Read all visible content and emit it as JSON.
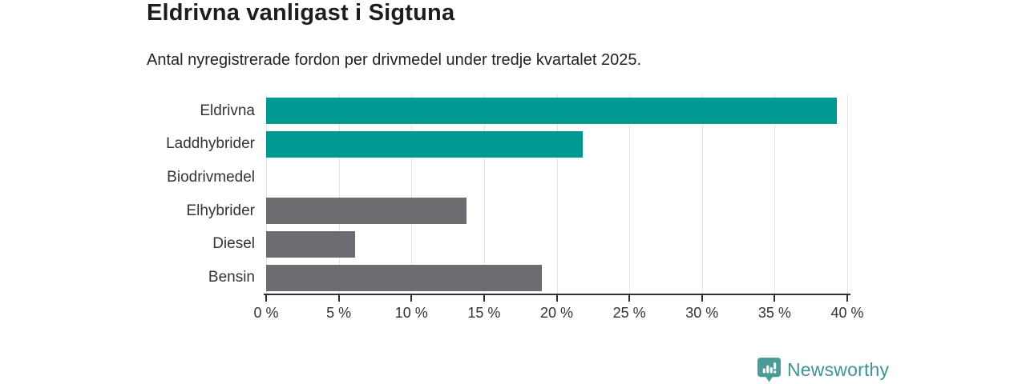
{
  "title": "Eldrivna vanligast i Sigtuna",
  "subtitle": "Antal nyregistrerade fordon per drivmedel under tredje kvartalet 2025.",
  "chart_data": {
    "type": "bar",
    "orientation": "horizontal",
    "title": "Eldrivna vanligast i Sigtuna",
    "subtitle": "Antal nyregistrerade fordon per drivmedel under tredje kvartalet 2025.",
    "categories": [
      "Eldrivna",
      "Laddhybrider",
      "Biodrivmedel",
      "Elhybrider",
      "Diesel",
      "Bensin"
    ],
    "values": [
      39.3,
      21.8,
      0,
      13.8,
      6.1,
      19.0
    ],
    "unit": "%",
    "xlim": [
      0,
      40
    ],
    "x_ticks": [
      {
        "value": 0,
        "label": "0 %"
      },
      {
        "value": 5,
        "label": "5 %"
      },
      {
        "value": 10,
        "label": "10 %"
      },
      {
        "value": 15,
        "label": "15 %"
      },
      {
        "value": 20,
        "label": "20 %"
      },
      {
        "value": 25,
        "label": "25 %"
      },
      {
        "value": 30,
        "label": "30 %"
      },
      {
        "value": 35,
        "label": "35 %"
      },
      {
        "value": 40,
        "label": "40 %"
      }
    ],
    "grid": true,
    "bar_colors": [
      "#009a93",
      "#009a93",
      "#6c6c71",
      "#6c6c71",
      "#6c6c71",
      "#6c6c71"
    ],
    "highlight_color": "#009a93",
    "default_color": "#6c6c71",
    "gridline_color": "#e4e4e4",
    "axis_color": "#2e2e2e",
    "legend": "none"
  },
  "branding": {
    "logo_text": "Newsworthy",
    "logo_text_color": "#3d948e",
    "logo_icon_color": "#4a9d97",
    "logo_icon": "newsworthy-chart-speech-bubble-icon"
  }
}
